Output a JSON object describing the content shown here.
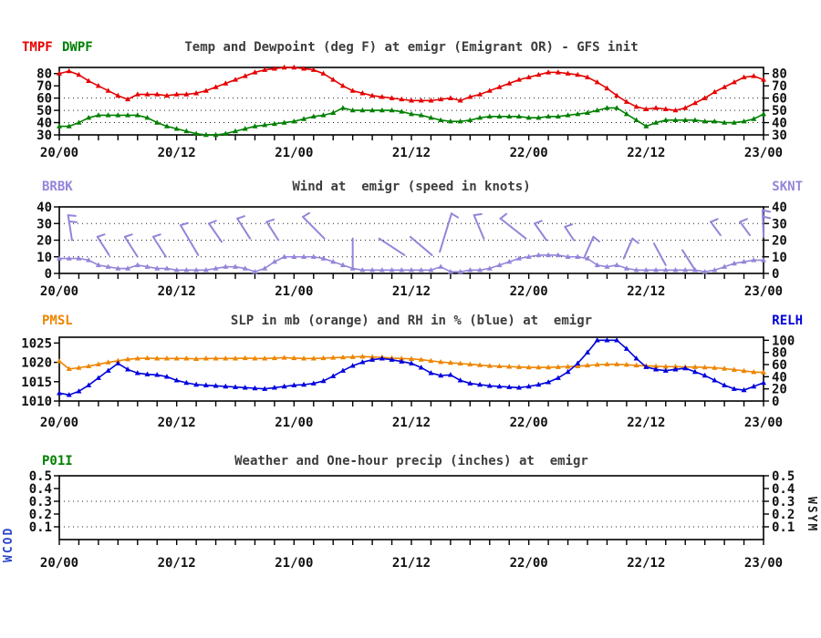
{
  "colors": {
    "tmpf": "#e60000",
    "dwpf": "#008000",
    "wind": "#9584d9",
    "pmsl": "#ee8500",
    "relh": "#0000dd",
    "wcod": "#2b48c8",
    "wsym": "#222222",
    "title": "#3d3d3d",
    "axis": "#000000"
  },
  "station": "emigr",
  "x_axis": {
    "tick_labels": [
      "20/00",
      "20/12",
      "21/00",
      "21/12",
      "22/00",
      "22/12",
      "23/00"
    ],
    "hours_span": 72,
    "minor_tick_hours": 2
  },
  "panels": [
    {
      "title": "Temp and Dewpoint (deg F) at emigr (Emigrant OR) - GFS init",
      "legend": [
        {
          "label": "TMPF"
        },
        {
          "label": "DWPF"
        }
      ]
    },
    {
      "title": "Wind at  emigr (speed in knots)",
      "legend_left": "BRBK",
      "legend_right": "SKNT"
    },
    {
      "title": "SLP in mb (orange) and RH in % (blue) at  emigr",
      "legend_left": "PMSL",
      "legend_right": "RELH"
    },
    {
      "title": "Weather and One-hour precip (inches) at  emigr",
      "legend_left": "P01I",
      "side_left": "WCOD",
      "side_right": "WSYM"
    }
  ],
  "chart_data": [
    {
      "type": "line",
      "title": "Temp and Dewpoint (deg F) at emigr (Emigrant OR) - GFS init",
      "x": "hours 0-72 from 20/00 to 23/00, hourly",
      "x_tick_labels": [
        "20/00",
        "20/12",
        "21/00",
        "21/12",
        "22/00",
        "22/12",
        "23/00"
      ],
      "ylim": [
        30,
        85
      ],
      "yticks": [
        80,
        70,
        60,
        50,
        40,
        30
      ],
      "dotted_gridlines": [
        60,
        50,
        40
      ],
      "series": [
        {
          "name": "TMPF",
          "color_key": "tmpf",
          "values": [
            80,
            82,
            79,
            74,
            70,
            66,
            62,
            59,
            63,
            63,
            63,
            62,
            63,
            63,
            64,
            66,
            69,
            72,
            75,
            78,
            81,
            83,
            84,
            85,
            85,
            84,
            83,
            80,
            75,
            70,
            66,
            64,
            62,
            61,
            60,
            59,
            58,
            58,
            58,
            59,
            60,
            58,
            61,
            63,
            66,
            69,
            72,
            75,
            77,
            79,
            81,
            81,
            80,
            79,
            77,
            73,
            68,
            62,
            57,
            53,
            51,
            52,
            51,
            50,
            52,
            56,
            60,
            65,
            69,
            73,
            77,
            78,
            75
          ]
        },
        {
          "name": "DWPF",
          "color_key": "dwpf",
          "values": [
            37,
            37,
            40,
            44,
            46,
            46,
            46,
            46,
            46,
            44,
            40,
            37,
            35,
            33,
            31,
            30,
            30,
            31,
            33,
            35,
            37,
            38,
            39,
            40,
            41,
            43,
            45,
            46,
            48,
            52,
            50,
            50,
            50,
            50,
            50,
            49,
            47,
            46,
            44,
            42,
            41,
            41,
            42,
            44,
            45,
            45,
            45,
            45,
            44,
            44,
            45,
            45,
            46,
            47,
            48,
            50,
            52,
            52,
            47,
            42,
            37,
            40,
            42,
            42,
            42,
            42,
            41,
            41,
            40,
            40,
            41,
            43,
            47
          ]
        }
      ]
    },
    {
      "type": "line",
      "title": "Wind at  emigr (speed in knots)",
      "x_tick_labels": [
        "20/00",
        "20/12",
        "21/00",
        "21/12",
        "22/00",
        "22/12",
        "23/00"
      ],
      "ylim": [
        0,
        40
      ],
      "yticks": [
        40,
        30,
        20,
        10,
        0
      ],
      "dotted_gridlines": [
        30,
        20,
        10
      ],
      "series": [
        {
          "name": "SKNT",
          "color_key": "wind",
          "values": [
            9,
            9,
            9,
            8,
            5,
            4,
            3,
            3,
            5,
            4,
            3,
            3,
            2,
            2,
            2,
            2,
            3,
            4,
            4,
            3,
            1,
            3,
            7,
            10,
            10,
            10,
            10,
            9,
            7,
            5,
            3,
            2,
            2,
            2,
            2,
            2,
            2,
            2,
            2,
            4,
            1,
            1,
            2,
            2,
            3,
            5,
            7,
            9,
            10,
            11,
            11,
            11,
            10,
            10,
            9,
            5,
            4,
            5,
            3,
            2,
            2,
            2,
            2,
            2,
            2,
            2,
            1,
            2,
            4,
            6,
            7,
            8,
            8
          ]
        }
      ],
      "barbs_hours_knots": [
        [
          0.9,
          35,
          1.3,
          20,
          2
        ],
        [
          3.9,
          22,
          5.1,
          11,
          1
        ],
        [
          6.7,
          22,
          8.0,
          10,
          1
        ],
        [
          9.6,
          22,
          10.9,
          10,
          1
        ],
        [
          12.4,
          29,
          14.2,
          11,
          1
        ],
        [
          15.3,
          30,
          16.6,
          19,
          1
        ],
        [
          18.2,
          33,
          19.5,
          21,
          1
        ],
        [
          21.2,
          31,
          22.4,
          20,
          1
        ],
        [
          24.9,
          34,
          27.1,
          21,
          1
        ],
        [
          30.0,
          21,
          30.0,
          4,
          0
        ],
        [
          32.7,
          21,
          35.3,
          11,
          0
        ],
        [
          35.9,
          22,
          38.1,
          11,
          0
        ],
        [
          40.1,
          36,
          38.9,
          13,
          1
        ],
        [
          42.4,
          35,
          43.4,
          21,
          1
        ],
        [
          45.1,
          33,
          47.7,
          21,
          1
        ],
        [
          48.6,
          30,
          49.8,
          20,
          1
        ],
        [
          51.7,
          28,
          52.6,
          20,
          1
        ],
        [
          54.6,
          22,
          53.7,
          10,
          1
        ],
        [
          58.6,
          21,
          57.7,
          9,
          1
        ],
        [
          60.8,
          18,
          62.0,
          5,
          0
        ],
        [
          63.7,
          14,
          64.9,
          3,
          0
        ],
        [
          66.6,
          31,
          67.6,
          23,
          1
        ],
        [
          69.6,
          31,
          70.6,
          23,
          1
        ],
        [
          71.9,
          38,
          72.0,
          22,
          2
        ]
      ]
    },
    {
      "type": "line",
      "title": "SLP in mb (orange) and RH in % (blue) at  emigr",
      "x_tick_labels": [
        "20/00",
        "20/12",
        "21/00",
        "21/12",
        "22/00",
        "22/12",
        "23/00"
      ],
      "left_axis": {
        "name": "PMSL",
        "ylim": [
          1010,
          1026.5
        ],
        "yticks": [
          1025,
          1020,
          1015,
          1010
        ]
      },
      "right_axis": {
        "name": "RELH",
        "ylim": [
          0,
          105
        ],
        "yticks": [
          100,
          80,
          60,
          40,
          20,
          0
        ]
      },
      "dotted_gridlines": [],
      "series": [
        {
          "name": "PMSL",
          "axis": "left",
          "color_key": "pmsl",
          "values": [
            1020.3,
            1018.3,
            1018.6,
            1019.0,
            1019.5,
            1020.0,
            1020.4,
            1020.8,
            1021.0,
            1021.1,
            1021.0,
            1021.0,
            1021.0,
            1021.0,
            1020.9,
            1021.0,
            1021.0,
            1021.0,
            1021.0,
            1021.1,
            1021.0,
            1021.0,
            1021.1,
            1021.2,
            1021.1,
            1021.0,
            1021.0,
            1021.1,
            1021.2,
            1021.3,
            1021.4,
            1021.5,
            1021.4,
            1021.3,
            1021.1,
            1021.0,
            1020.9,
            1020.7,
            1020.4,
            1020.1,
            1019.9,
            1019.7,
            1019.5,
            1019.3,
            1019.1,
            1019.0,
            1018.9,
            1018.8,
            1018.7,
            1018.7,
            1018.7,
            1018.8,
            1018.9,
            1019.0,
            1019.2,
            1019.4,
            1019.5,
            1019.5,
            1019.4,
            1019.2,
            1019.1,
            1019.0,
            1018.9,
            1018.9,
            1018.8,
            1018.8,
            1018.7,
            1018.6,
            1018.4,
            1018.1,
            1017.8,
            1017.5,
            1017.4
          ]
        },
        {
          "name": "RELH",
          "axis": "right",
          "color_key": "relh",
          "values": [
            13,
            10,
            16,
            26,
            38,
            50,
            62,
            52,
            46,
            44,
            43,
            40,
            34,
            30,
            27,
            26,
            25,
            24,
            23,
            22,
            21,
            20,
            22,
            24,
            26,
            27,
            29,
            33,
            41,
            50,
            58,
            64,
            68,
            70,
            68,
            65,
            62,
            55,
            46,
            42,
            43,
            34,
            29,
            27,
            25,
            24,
            23,
            22,
            24,
            27,
            31,
            38,
            48,
            62,
            80,
            100,
            100,
            100,
            86,
            70,
            56,
            52,
            50,
            52,
            54,
            48,
            42,
            34,
            26,
            20,
            18,
            24,
            30
          ]
        }
      ]
    },
    {
      "type": "line",
      "title": "Weather and One-hour precip (inches) at  emigr",
      "x_tick_labels": [
        "20/00",
        "20/12",
        "21/00",
        "21/12",
        "22/00",
        "22/12",
        "23/00"
      ],
      "ylim": [
        0,
        0.5
      ],
      "yticks": [
        0.5,
        0.4,
        0.3,
        0.2,
        0.1
      ],
      "dotted_gridlines": [
        0.3,
        0.1
      ],
      "series": []
    }
  ]
}
